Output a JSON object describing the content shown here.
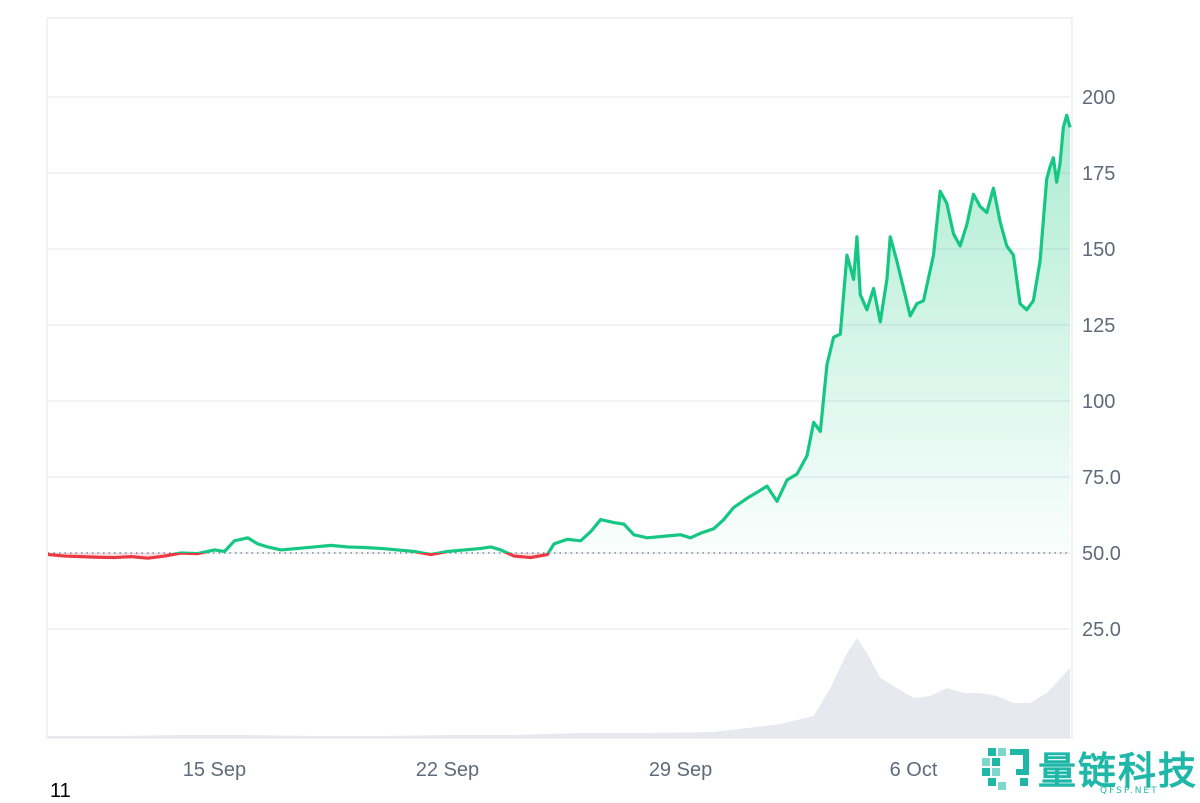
{
  "chart_data": {
    "type": "area",
    "baseline": 50,
    "ylim": [
      0,
      225
    ],
    "y_ticks": [
      "25.0",
      "50.0",
      "75.0",
      "100",
      "125",
      "150",
      "175",
      "200"
    ],
    "x_ticks": [
      {
        "label": "15 Sep",
        "day": 15
      },
      {
        "label": "22 Sep",
        "day": 22
      },
      {
        "label": "29 Sep",
        "day": 29
      },
      {
        "label": "6 Oct",
        "day": 36
      }
    ],
    "xlim_days": [
      10.0,
      40.1
    ],
    "price_series": [
      [
        10.0,
        49.5
      ],
      [
        10.5,
        49.0
      ],
      [
        11.0,
        48.8
      ],
      [
        11.5,
        48.6
      ],
      [
        12.0,
        48.5
      ],
      [
        12.5,
        48.8
      ],
      [
        13.0,
        48.3
      ],
      [
        13.5,
        49.0
      ],
      [
        14.0,
        50.0
      ],
      [
        14.5,
        49.8
      ],
      [
        15.0,
        51.0
      ],
      [
        15.3,
        50.5
      ],
      [
        15.6,
        54.0
      ],
      [
        16.0,
        55.0
      ],
      [
        16.3,
        53.0
      ],
      [
        16.6,
        52.0
      ],
      [
        17.0,
        51.0
      ],
      [
        17.5,
        51.5
      ],
      [
        18.0,
        52.0
      ],
      [
        18.5,
        52.5
      ],
      [
        19.0,
        52.0
      ],
      [
        19.5,
        51.8
      ],
      [
        20.0,
        51.5
      ],
      [
        20.5,
        51.0
      ],
      [
        21.0,
        50.5
      ],
      [
        21.5,
        49.5
      ],
      [
        22.0,
        50.5
      ],
      [
        22.5,
        51.0
      ],
      [
        23.0,
        51.5
      ],
      [
        23.3,
        52.0
      ],
      [
        23.6,
        51.0
      ],
      [
        24.0,
        49.0
      ],
      [
        24.5,
        48.5
      ],
      [
        25.0,
        49.5
      ],
      [
        25.2,
        53.0
      ],
      [
        25.6,
        54.5
      ],
      [
        26.0,
        54.0
      ],
      [
        26.3,
        57.0
      ],
      [
        26.6,
        61.0
      ],
      [
        27.0,
        60.0
      ],
      [
        27.3,
        59.5
      ],
      [
        27.6,
        56.0
      ],
      [
        28.0,
        55.0
      ],
      [
        28.5,
        55.5
      ],
      [
        29.0,
        56.0
      ],
      [
        29.3,
        55.0
      ],
      [
        29.6,
        56.5
      ],
      [
        30.0,
        58.0
      ],
      [
        30.3,
        61.0
      ],
      [
        30.6,
        65.0
      ],
      [
        31.0,
        68.0
      ],
      [
        31.3,
        70.0
      ],
      [
        31.6,
        72.0
      ],
      [
        31.9,
        67.0
      ],
      [
        32.2,
        74.0
      ],
      [
        32.5,
        76.0
      ],
      [
        32.8,
        82.0
      ],
      [
        33.0,
        93.0
      ],
      [
        33.2,
        90.0
      ],
      [
        33.4,
        112.0
      ],
      [
        33.6,
        121.0
      ],
      [
        33.8,
        122.0
      ],
      [
        34.0,
        148.0
      ],
      [
        34.2,
        140.0
      ],
      [
        34.3,
        154.0
      ],
      [
        34.4,
        135.0
      ],
      [
        34.6,
        130.0
      ],
      [
        34.8,
        137.0
      ],
      [
        35.0,
        126.0
      ],
      [
        35.2,
        140.0
      ],
      [
        35.3,
        154.0
      ],
      [
        35.5,
        146.0
      ],
      [
        35.7,
        137.0
      ],
      [
        35.9,
        128.0
      ],
      [
        36.1,
        132.0
      ],
      [
        36.3,
        133.0
      ],
      [
        36.5,
        143.0
      ],
      [
        36.6,
        148.0
      ],
      [
        36.8,
        169.0
      ],
      [
        37.0,
        165.0
      ],
      [
        37.2,
        155.0
      ],
      [
        37.4,
        151.0
      ],
      [
        37.6,
        158.0
      ],
      [
        37.8,
        168.0
      ],
      [
        38.0,
        164.0
      ],
      [
        38.2,
        162.0
      ],
      [
        38.4,
        170.0
      ],
      [
        38.6,
        159.0
      ],
      [
        38.8,
        151.0
      ],
      [
        39.0,
        148.0
      ],
      [
        39.2,
        132.0
      ],
      [
        39.4,
        130.0
      ],
      [
        39.6,
        133.0
      ],
      [
        39.8,
        146.0
      ],
      [
        40.0,
        173.0
      ],
      [
        40.1,
        177.0
      ],
      [
        40.2,
        180.0
      ],
      [
        40.3,
        172.0
      ],
      [
        40.4,
        178.0
      ],
      [
        40.5,
        190.0
      ],
      [
        40.6,
        194.0
      ],
      [
        40.7,
        190.0
      ]
    ],
    "volume_series": [
      [
        10.0,
        0.02
      ],
      [
        12.0,
        0.02
      ],
      [
        14.0,
        0.03
      ],
      [
        16.0,
        0.03
      ],
      [
        18.0,
        0.02
      ],
      [
        20.0,
        0.02
      ],
      [
        22.0,
        0.03
      ],
      [
        24.0,
        0.03
      ],
      [
        26.0,
        0.05
      ],
      [
        28.0,
        0.05
      ],
      [
        30.0,
        0.06
      ],
      [
        31.0,
        0.1
      ],
      [
        32.0,
        0.14
      ],
      [
        33.0,
        0.22
      ],
      [
        33.5,
        0.5
      ],
      [
        34.0,
        0.85
      ],
      [
        34.3,
        1.0
      ],
      [
        34.6,
        0.85
      ],
      [
        35.0,
        0.6
      ],
      [
        35.5,
        0.5
      ],
      [
        36.0,
        0.4
      ],
      [
        36.5,
        0.42
      ],
      [
        37.0,
        0.5
      ],
      [
        37.5,
        0.45
      ],
      [
        38.0,
        0.45
      ],
      [
        38.5,
        0.42
      ],
      [
        39.0,
        0.35
      ],
      [
        39.5,
        0.35
      ],
      [
        40.0,
        0.45
      ],
      [
        40.7,
        0.7
      ]
    ],
    "colors": {
      "up": "#16c784",
      "down": "#ea3943",
      "grid": "#eceef2",
      "axis_text": "#5f6b7a",
      "volume": "#e6e9ee"
    }
  },
  "corner_label": "11",
  "watermark": {
    "name": "量链科技",
    "sub": "QFSP.NET",
    "color": "#1fb8a8"
  }
}
